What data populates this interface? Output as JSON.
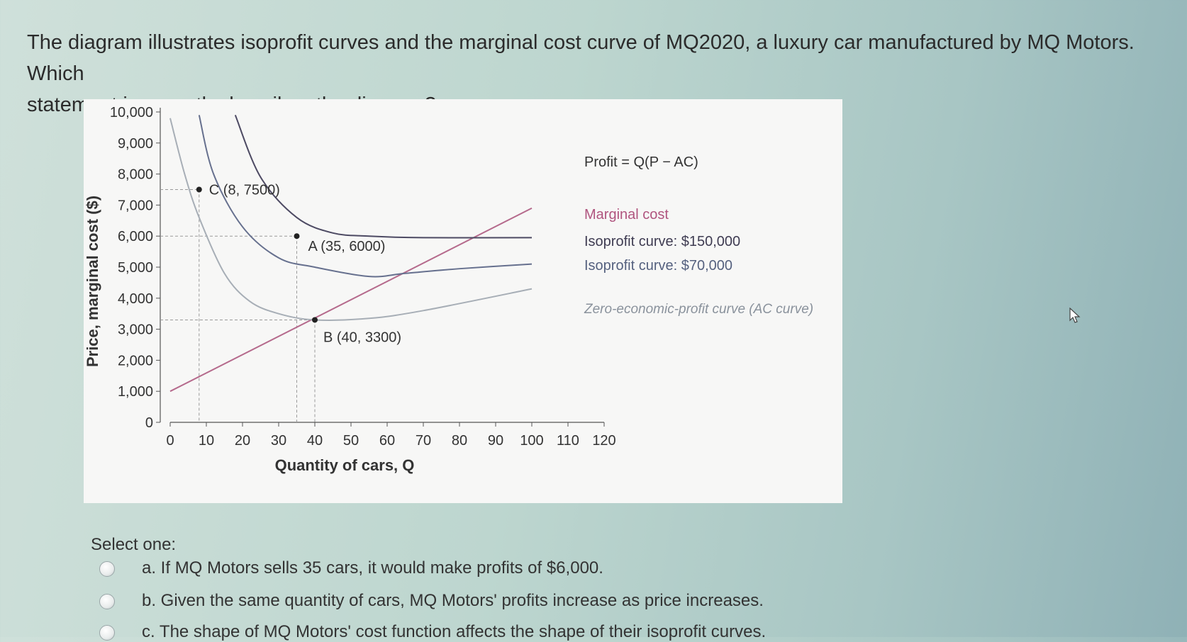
{
  "question": {
    "line1": "The diagram illustrates isoprofit curves and the marginal cost curve of MQ2020, a luxury car manufactured by MQ Motors. Which",
    "line2": "statement incorrectly describes the diagram?"
  },
  "chart_data": {
    "type": "line",
    "title": "",
    "xlabel": "Quantity of cars, Q",
    "ylabel": "Price, marginal cost ($)",
    "xlim": [
      0,
      120
    ],
    "ylim": [
      0,
      10000
    ],
    "x_ticks": [
      "0",
      "10",
      "20",
      "30",
      "40",
      "50",
      "60",
      "70",
      "80",
      "90",
      "100",
      "110",
      "120"
    ],
    "y_ticks": [
      "0",
      "1,000",
      "2,000",
      "3,000",
      "4,000",
      "5,000",
      "6,000",
      "7,000",
      "8,000",
      "9,000",
      "10,000"
    ],
    "legend_title": "Profit = Q(P − AC)",
    "series": [
      {
        "name": "Marginal cost",
        "color": "#b56a8c",
        "points": [
          [
            0,
            1000
          ],
          [
            100,
            6900
          ]
        ]
      },
      {
        "name": "Isoprofit curve: $150,000",
        "color": "#4d4a63",
        "points": [
          [
            18,
            9900
          ],
          [
            25,
            7900
          ],
          [
            35,
            6600
          ],
          [
            45,
            6100
          ],
          [
            55,
            6000
          ],
          [
            70,
            5950
          ],
          [
            100,
            5950
          ]
        ]
      },
      {
        "name": "Isoprofit curve: $70,000",
        "color": "#66708e",
        "points": [
          [
            8,
            9900
          ],
          [
            12,
            8000
          ],
          [
            20,
            6300
          ],
          [
            30,
            5300
          ],
          [
            40,
            5000
          ],
          [
            55,
            4700
          ],
          [
            65,
            4800
          ],
          [
            80,
            4950
          ],
          [
            100,
            5100
          ]
        ]
      },
      {
        "name": "Zero-economic-profit curve (AC curve)",
        "color": "#a7aeb6",
        "points": [
          [
            0,
            9800
          ],
          [
            4,
            8000
          ],
          [
            8,
            6600
          ],
          [
            15,
            4800
          ],
          [
            22,
            3900
          ],
          [
            30,
            3500
          ],
          [
            40,
            3300
          ],
          [
            55,
            3350
          ],
          [
            70,
            3600
          ],
          [
            100,
            4300
          ]
        ]
      }
    ],
    "points": [
      {
        "label": "C (8, 7500)",
        "x": 8,
        "y": 7500
      },
      {
        "label": "A (35, 6000)",
        "x": 35,
        "y": 6000
      },
      {
        "label": "B (40, 3300)",
        "x": 40,
        "y": 3300
      }
    ]
  },
  "quiz": {
    "select_label": "Select one:",
    "options": [
      {
        "text": "a. If MQ Motors sells 35 cars, it would make profits of $6,000."
      },
      {
        "text": "b. Given the same quantity of cars, MQ Motors' profits increase as price increases."
      },
      {
        "text": "c. The shape of MQ Motors' cost function affects the shape of their isoprofit curves."
      }
    ]
  },
  "icons": {
    "cursor": "mouse-pointer-icon"
  }
}
